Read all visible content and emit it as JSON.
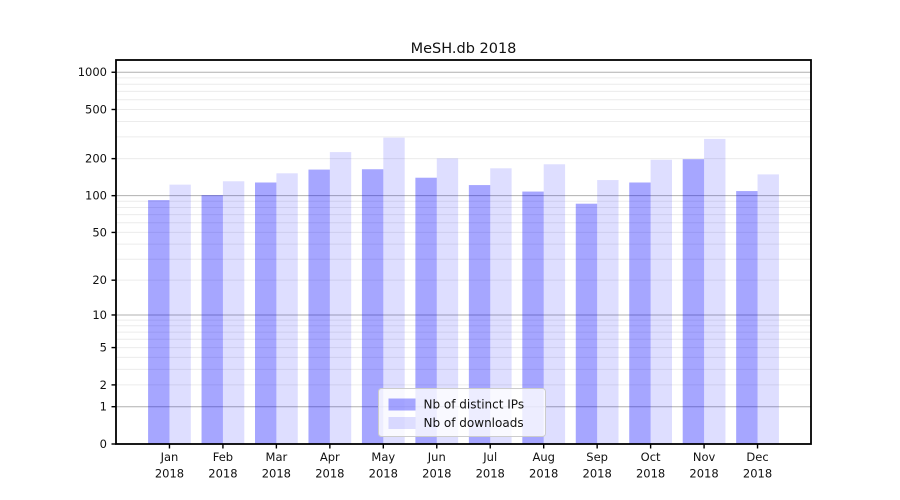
{
  "chart_data": {
    "type": "bar",
    "title": "MeSH.db 2018",
    "categories": [
      "Jan\n2018",
      "Feb\n2018",
      "Mar\n2018",
      "Apr\n2018",
      "May\n2018",
      "Jun\n2018",
      "Jul\n2018",
      "Aug\n2018",
      "Sep\n2018",
      "Oct\n2018",
      "Nov\n2018",
      "Dec\n2018"
    ],
    "series": [
      {
        "name": "Nb of distinct IPs",
        "color": "rgba(0,0,255,0.35)",
        "values": [
          92,
          101,
          128,
          163,
          164,
          140,
          122,
          108,
          86,
          128,
          198,
          109
        ]
      },
      {
        "name": "Nb of downloads",
        "color": "rgba(0,0,255,0.13)",
        "values": [
          123,
          131,
          152,
          226,
          296,
          201,
          167,
          180,
          134,
          196,
          289,
          149
        ]
      }
    ],
    "y_scale": "log10(value+1)",
    "y_ticks": [
      0,
      1,
      2,
      5,
      10,
      20,
      50,
      100,
      200,
      500,
      1000
    ],
    "ylim": [
      0,
      1256
    ],
    "xlabel": "",
    "ylabel": "",
    "grid": true,
    "legend_position": "lower center",
    "colors": {
      "grid_major": "#b0b0b0",
      "grid_minor": "#ececec",
      "spine": "#000000",
      "legend_border": "#cccccc"
    }
  }
}
